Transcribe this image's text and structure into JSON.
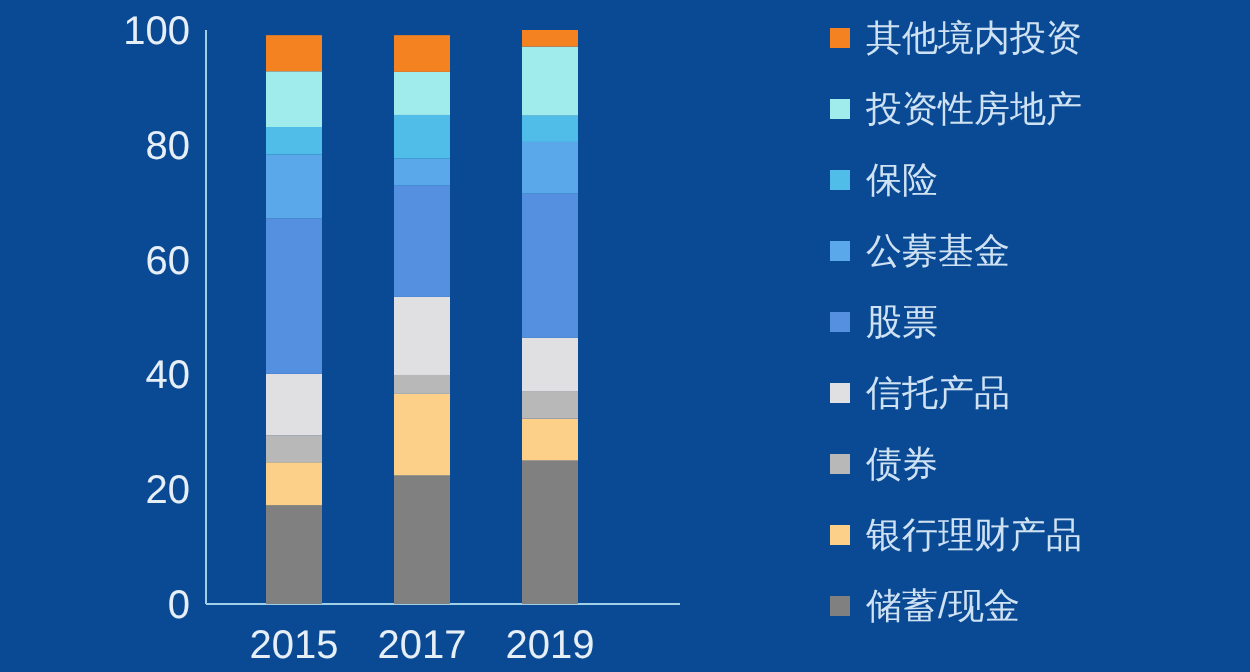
{
  "chart_data": {
    "type": "bar",
    "stacked": true,
    "categories": [
      "2015",
      "2017",
      "2019"
    ],
    "ylim": [
      0,
      100
    ],
    "yticks": [
      0,
      20,
      40,
      60,
      80,
      100
    ],
    "legend": "right",
    "series": [
      {
        "name": "储蓄/现金",
        "color": "#808080",
        "values": [
          17.2,
          22.4,
          25.0
        ]
      },
      {
        "name": "银行理财产品",
        "color": "#fdd08a",
        "values": [
          7.5,
          14.2,
          7.3
        ]
      },
      {
        "name": "债券",
        "color": "#b8b8b8",
        "values": [
          4.7,
          3.3,
          4.8
        ]
      },
      {
        "name": "信托产品",
        "color": "#e0e0e2",
        "values": [
          10.7,
          13.6,
          9.3
        ]
      },
      {
        "name": "股票",
        "color": "#5590e0",
        "values": [
          27.1,
          19.4,
          25.1
        ]
      },
      {
        "name": "公募基金",
        "color": "#5aa8ea",
        "values": [
          11.1,
          4.7,
          9.0
        ]
      },
      {
        "name": "保险",
        "color": "#50bce8",
        "values": [
          4.8,
          7.6,
          4.6
        ]
      },
      {
        "name": "投资性房地产",
        "color": "#a0ecec",
        "values": [
          9.7,
          7.5,
          12.0
        ]
      },
      {
        "name": "其他境内投资",
        "color": "#f58220",
        "values": [
          6.3,
          6.4,
          2.9
        ]
      }
    ]
  }
}
